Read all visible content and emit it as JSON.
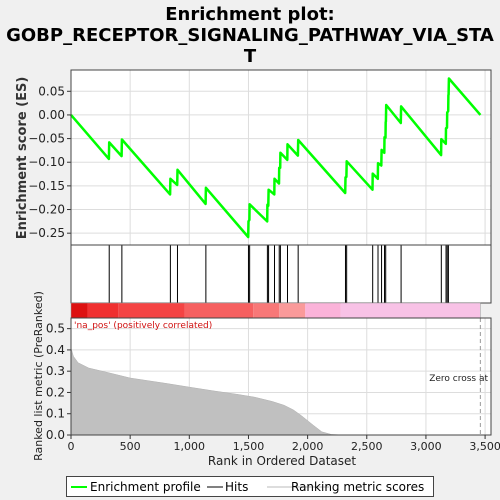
{
  "chart_data": {
    "type": "line",
    "title": "Enrichment plot:",
    "subtitle_lines": [
      "GOBP_RECEPTOR_SIGNALING_PATHWAY_VIA_STA",
      "T"
    ],
    "ylabel_top": "Enrichment score (ES)",
    "ylabel_bottom": "Ranked list metric (PreRanked)",
    "xlabel": "Rank in Ordered Dataset",
    "xlim": [
      0,
      3550
    ],
    "ylim_top": [
      -0.275,
      0.095
    ],
    "ylim_bottom": [
      0,
      0.55
    ],
    "yticks_top": [
      0.05,
      0.0,
      -0.05,
      -0.1,
      -0.15,
      -0.2,
      -0.25
    ],
    "ytick_labels_top": [
      "0.05",
      "0.00",
      "−0.05",
      "−0.10",
      "−0.15",
      "−0.20",
      "−0.25"
    ],
    "yticks_bottom": [
      0.0,
      0.1,
      0.2,
      0.3,
      0.4,
      0.5
    ],
    "ytick_labels_bottom": [
      "0.0",
      "0.1",
      "0.2",
      "0.3",
      "0.4",
      "0.5"
    ],
    "xticks": [
      0,
      500,
      1000,
      1500,
      2000,
      2500,
      3000,
      3500
    ],
    "xtick_labels": [
      "0",
      "500",
      "1,000",
      "1,500",
      "2,000",
      "2,500",
      "3,000",
      "3,500"
    ],
    "grid": true,
    "line_color": "#00ff00",
    "hits": [
      323,
      430,
      840,
      900,
      1140,
      1500,
      1510,
      1660,
      1670,
      1720,
      1760,
      1770,
      1830,
      1920,
      2320,
      2330,
      2550,
      2595,
      2625,
      2650,
      2660,
      2790,
      3130,
      3170,
      3180,
      3190
    ],
    "es_points": [
      [
        0,
        0.0
      ],
      [
        320,
        -0.093
      ],
      [
        323,
        -0.058
      ],
      [
        428,
        -0.087
      ],
      [
        430,
        -0.052
      ],
      [
        838,
        -0.168
      ],
      [
        840,
        -0.135
      ],
      [
        898,
        -0.148
      ],
      [
        900,
        -0.116
      ],
      [
        1138,
        -0.188
      ],
      [
        1140,
        -0.154
      ],
      [
        1498,
        -0.258
      ],
      [
        1500,
        -0.225
      ],
      [
        1508,
        -0.222
      ],
      [
        1510,
        -0.189
      ],
      [
        1658,
        -0.225
      ],
      [
        1660,
        -0.19
      ],
      [
        1668,
        -0.192
      ],
      [
        1670,
        -0.158
      ],
      [
        1718,
        -0.168
      ],
      [
        1720,
        -0.135
      ],
      [
        1758,
        -0.145
      ],
      [
        1760,
        -0.112
      ],
      [
        1768,
        -0.112
      ],
      [
        1770,
        -0.08
      ],
      [
        1828,
        -0.095
      ],
      [
        1830,
        -0.062
      ],
      [
        1918,
        -0.086
      ],
      [
        1920,
        -0.053
      ],
      [
        2318,
        -0.165
      ],
      [
        2320,
        -0.132
      ],
      [
        2328,
        -0.131
      ],
      [
        2330,
        -0.098
      ],
      [
        2548,
        -0.158
      ],
      [
        2550,
        -0.124
      ],
      [
        2593,
        -0.135
      ],
      [
        2595,
        -0.102
      ],
      [
        2623,
        -0.107
      ],
      [
        2625,
        -0.074
      ],
      [
        2648,
        -0.08
      ],
      [
        2650,
        -0.047
      ],
      [
        2658,
        -0.048
      ],
      [
        2660,
        -0.015
      ],
      [
        2662,
        -0.014
      ],
      [
        2664,
        0.021
      ],
      [
        2788,
        -0.017
      ],
      [
        2790,
        0.018
      ],
      [
        3128,
        -0.085
      ],
      [
        3130,
        -0.051
      ],
      [
        3168,
        -0.061
      ],
      [
        3170,
        -0.028
      ],
      [
        3178,
        -0.027
      ],
      [
        3180,
        0.005
      ],
      [
        3188,
        0.008
      ],
      [
        3190,
        0.042
      ],
      [
        3192,
        0.043
      ],
      [
        3194,
        0.077
      ],
      [
        3460,
        0.0
      ]
    ],
    "metric_points": [
      [
        0,
        0.41
      ],
      [
        20,
        0.37
      ],
      [
        60,
        0.34
      ],
      [
        150,
        0.315
      ],
      [
        300,
        0.295
      ],
      [
        500,
        0.268
      ],
      [
        800,
        0.243
      ],
      [
        1000,
        0.225
      ],
      [
        1200,
        0.208
      ],
      [
        1400,
        0.192
      ],
      [
        1550,
        0.178
      ],
      [
        1700,
        0.158
      ],
      [
        1800,
        0.14
      ],
      [
        1880,
        0.118
      ],
      [
        1950,
        0.09
      ],
      [
        2050,
        0.045
      ],
      [
        2120,
        0.015
      ],
      [
        2200,
        0.003
      ],
      [
        2300,
        0.0
      ],
      [
        3460,
        0.0
      ]
    ],
    "zero_cross_x": 3460,
    "zero_cross_label": "Zero cross at",
    "na_pos_label": "'na_pos' (positively correlated)",
    "legend": [
      {
        "label": "Enrichment profile",
        "color": "#00ff00"
      },
      {
        "label": "Hits",
        "color": "#000000"
      },
      {
        "label": "Ranking metric scores",
        "color": "#bbbbbb"
      }
    ]
  }
}
